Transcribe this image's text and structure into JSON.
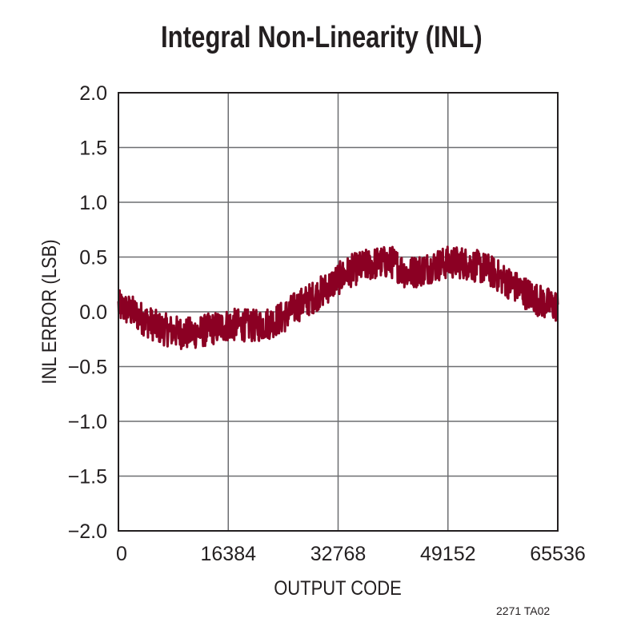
{
  "figure_id": "2271 TA02",
  "chart_data": {
    "type": "line",
    "title": "Integral Non-Linearity (INL)",
    "xlabel": "OUTPUT CODE",
    "ylabel": "INL ERROR (LSB)",
    "xlim": [
      0,
      65536
    ],
    "ylim": [
      -2.0,
      2.0
    ],
    "x_ticks": [
      0,
      16384,
      32768,
      49152,
      65536
    ],
    "x_tick_labels": [
      "0",
      "16384",
      "32768",
      "49152",
      "65536"
    ],
    "y_ticks": [
      2.0,
      1.5,
      1.0,
      0.5,
      0.0,
      -0.5,
      -1.0,
      -1.5,
      -2.0
    ],
    "y_tick_labels": [
      "2.0",
      "1.5",
      "1.0",
      "0.5",
      "0.0",
      "−0.5",
      "−1.0",
      "−1.5",
      "−2.0"
    ],
    "grid": true,
    "series": [
      {
        "color": "#8b0023",
        "x": [
          0,
          2048,
          4096,
          6144,
          8192,
          10240,
          12288,
          14336,
          16384,
          18432,
          20480,
          22528,
          24576,
          26624,
          28672,
          30720,
          32768,
          34816,
          36864,
          38912,
          40960,
          43008,
          45056,
          47104,
          49152,
          51200,
          53248,
          55296,
          57344,
          59392,
          61440,
          63488,
          65536
        ],
        "y": [
          0.05,
          0.0,
          -0.08,
          -0.15,
          -0.18,
          -0.2,
          -0.18,
          -0.15,
          -0.12,
          -0.12,
          -0.13,
          -0.1,
          -0.05,
          0.05,
          0.12,
          0.2,
          0.3,
          0.38,
          0.42,
          0.45,
          0.45,
          0.35,
          0.38,
          0.42,
          0.45,
          0.45,
          0.42,
          0.38,
          0.3,
          0.22,
          0.15,
          0.08,
          0.05
        ],
        "noise_amplitude": 0.15
      }
    ]
  }
}
